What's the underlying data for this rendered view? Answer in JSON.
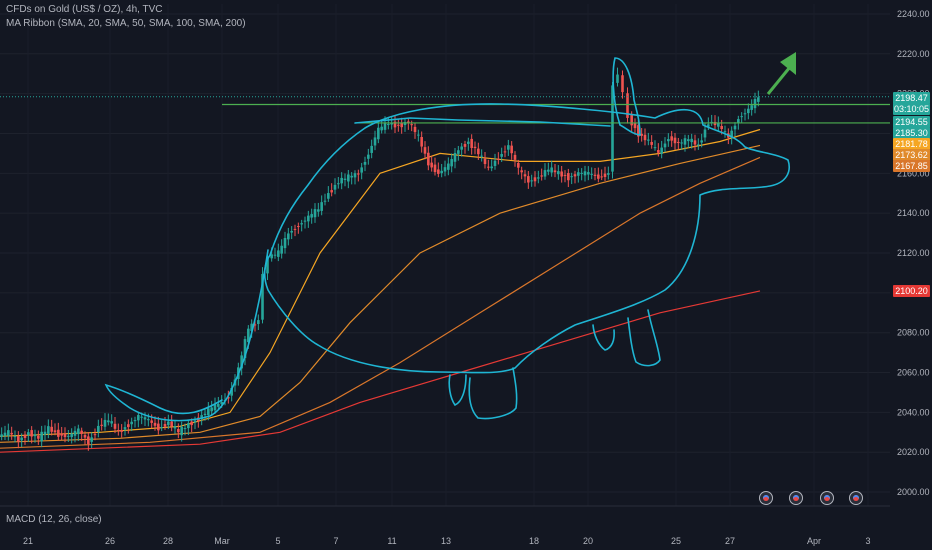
{
  "header": {
    "symbol_line": "CFDs on Gold (US$ / OZ), 4h, TVC",
    "ma_ribbon": "MA Ribbon (SMA, 20, SMA, 50, SMA, 100, SMA, 200)",
    "macd": "MACD (12, 26, close)"
  },
  "colors": {
    "background": "#131722",
    "up": "#26a69a",
    "down": "#ef5350",
    "sma20": "#f5a623",
    "sma50": "#e08a2a",
    "sma100": "#d9762b",
    "sma200": "#e53935",
    "drawing": "#1fb5d3",
    "hline": "#4caf50",
    "arrow": "#4caf50"
  },
  "price_tags": [
    {
      "value": "2198.47",
      "sub": "03:10:05",
      "bg": "#26a69a"
    },
    {
      "value": "2194.55",
      "bg": "#26a69a"
    },
    {
      "value": "2185.30",
      "bg": "#26a69a"
    },
    {
      "value": "2181.78",
      "bg": "#f5a623"
    },
    {
      "value": "2173.62",
      "bg": "#e08a2a"
    },
    {
      "value": "2167.85",
      "bg": "#d9762b"
    },
    {
      "value": "2100.20",
      "bg": "#e53935"
    }
  ],
  "chart_data": {
    "type": "line",
    "title": "CFDs on Gold (US$ / OZ), 4h, TVC",
    "y_ticks": [
      2000,
      2020,
      2040,
      2060,
      2080,
      2100,
      2120,
      2140,
      2160,
      2180,
      2200,
      2220,
      2240
    ],
    "y_tick_labels": [
      "2000.00",
      "2020.00",
      "2040.00",
      "2060.00",
      "2080.00",
      "2100.00",
      "2120.00",
      "2140.00",
      "2160.00",
      "2180.00",
      "2200.00",
      "2220.00",
      "2240.00"
    ],
    "ylim": [
      1993,
      2245
    ],
    "x_tick_labels": [
      "21",
      "26",
      "28",
      "Mar",
      "5",
      "7",
      "11",
      "13",
      "18",
      "20",
      "25",
      "27",
      "Apr",
      "3"
    ],
    "price_series": [
      [
        0,
        2028
      ],
      [
        10,
        2030
      ],
      [
        20,
        2026
      ],
      [
        30,
        2030
      ],
      [
        40,
        2027
      ],
      [
        50,
        2032
      ],
      [
        60,
        2029
      ],
      [
        70,
        2028
      ],
      [
        80,
        2031
      ],
      [
        90,
        2025
      ],
      [
        100,
        2033
      ],
      [
        110,
        2036
      ],
      [
        120,
        2030
      ],
      [
        130,
        2034
      ],
      [
        140,
        2038
      ],
      [
        150,
        2036
      ],
      [
        160,
        2032
      ],
      [
        170,
        2035
      ],
      [
        180,
        2030
      ],
      [
        190,
        2034
      ],
      [
        200,
        2037
      ],
      [
        210,
        2041
      ],
      [
        220,
        2044
      ],
      [
        230,
        2048
      ],
      [
        240,
        2062
      ],
      [
        250,
        2082
      ],
      [
        260,
        2086
      ],
      [
        265,
        2110
      ],
      [
        270,
        2118
      ],
      [
        280,
        2120
      ],
      [
        290,
        2130
      ],
      [
        300,
        2134
      ],
      [
        310,
        2138
      ],
      [
        320,
        2142
      ],
      [
        330,
        2150
      ],
      [
        340,
        2156
      ],
      [
        350,
        2158
      ],
      [
        360,
        2160
      ],
      [
        370,
        2170
      ],
      [
        380,
        2182
      ],
      [
        390,
        2185
      ],
      [
        400,
        2184
      ],
      [
        410,
        2186
      ],
      [
        420,
        2178
      ],
      [
        430,
        2165
      ],
      [
        440,
        2160
      ],
      [
        450,
        2164
      ],
      [
        460,
        2172
      ],
      [
        470,
        2176
      ],
      [
        480,
        2170
      ],
      [
        490,
        2162
      ],
      [
        500,
        2168
      ],
      [
        510,
        2174
      ],
      [
        520,
        2162
      ],
      [
        530,
        2156
      ],
      [
        540,
        2158
      ],
      [
        550,
        2162
      ],
      [
        560,
        2160
      ],
      [
        570,
        2158
      ],
      [
        580,
        2160
      ],
      [
        590,
        2160
      ],
      [
        600,
        2158
      ],
      [
        610,
        2160
      ],
      [
        615,
        2205
      ],
      [
        620,
        2210
      ],
      [
        625,
        2200
      ],
      [
        630,
        2188
      ],
      [
        640,
        2180
      ],
      [
        650,
        2176
      ],
      [
        660,
        2170
      ],
      [
        670,
        2178
      ],
      [
        680,
        2175
      ],
      [
        690,
        2177
      ],
      [
        700,
        2174
      ],
      [
        710,
        2186
      ],
      [
        720,
        2184
      ],
      [
        730,
        2178
      ],
      [
        740,
        2188
      ],
      [
        750,
        2192
      ],
      [
        760,
        2198
      ]
    ],
    "series": [
      {
        "values": [
          [
            0,
            2028
          ],
          [
            100,
            2030
          ],
          [
            180,
            2033
          ],
          [
            230,
            2040
          ],
          [
            270,
            2070
          ],
          [
            320,
            2120
          ],
          [
            380,
            2160
          ],
          [
            440,
            2170
          ],
          [
            520,
            2166
          ],
          [
            600,
            2166
          ],
          [
            660,
            2170
          ],
          [
            720,
            2176
          ],
          [
            760,
            2182
          ]
        ]
      },
      {
        "values": [
          [
            0,
            2025
          ],
          [
            120,
            2027
          ],
          [
            200,
            2030
          ],
          [
            260,
            2038
          ],
          [
            300,
            2055
          ],
          [
            350,
            2085
          ],
          [
            420,
            2120
          ],
          [
            500,
            2140
          ],
          [
            600,
            2155
          ],
          [
            680,
            2165
          ],
          [
            760,
            2174
          ]
        ]
      },
      {
        "values": [
          [
            0,
            2022
          ],
          [
            150,
            2025
          ],
          [
            260,
            2030
          ],
          [
            330,
            2045
          ],
          [
            400,
            2065
          ],
          [
            480,
            2090
          ],
          [
            560,
            2115
          ],
          [
            640,
            2140
          ],
          [
            700,
            2155
          ],
          [
            760,
            2168
          ]
        ]
      },
      {
        "values": [
          [
            0,
            2020
          ],
          [
            200,
            2024
          ],
          [
            280,
            2030
          ],
          [
            360,
            2045
          ],
          [
            460,
            2060
          ],
          [
            560,
            2075
          ],
          [
            660,
            2090
          ],
          [
            760,
            2101
          ]
        ]
      }
    ],
    "hlines": [
      2194.55,
      2185.3
    ]
  }
}
